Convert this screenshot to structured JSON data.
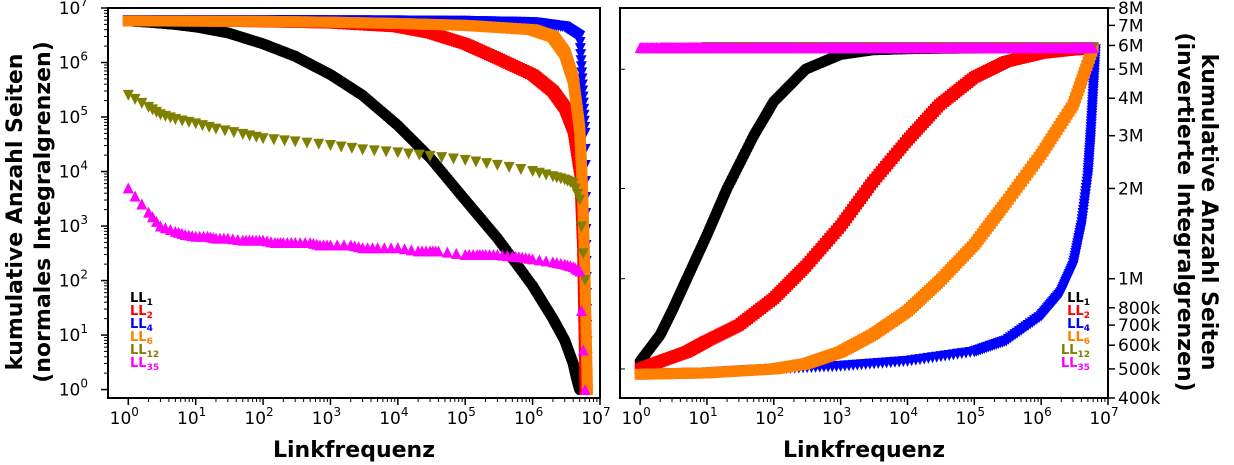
{
  "chart_data": [
    {
      "type": "scatter",
      "panel": "left",
      "xscale": "log",
      "yscale": "log",
      "xlim": [
        0.5,
        10000000
      ],
      "ylim": [
        0.7,
        10000000
      ],
      "xlabel": "Linkfrequenz",
      "ylabel_lines": [
        "kumulative Anzahl Seiten",
        "(normales Integralgrenzen)"
      ],
      "x_ticks": [
        {
          "base": "10",
          "exp": "0",
          "value": 1
        },
        {
          "base": "10",
          "exp": "1",
          "value": 10
        },
        {
          "base": "10",
          "exp": "2",
          "value": 100
        },
        {
          "base": "10",
          "exp": "3",
          "value": 1000
        },
        {
          "base": "10",
          "exp": "4",
          "value": 10000
        },
        {
          "base": "10",
          "exp": "5",
          "value": 100000
        },
        {
          "base": "10",
          "exp": "6",
          "value": 1000000
        },
        {
          "base": "10",
          "exp": "7",
          "value": 10000000
        }
      ],
      "y_ticks": [
        {
          "base": "10",
          "exp": "0",
          "value": 1
        },
        {
          "base": "10",
          "exp": "1",
          "value": 10
        },
        {
          "base": "10",
          "exp": "2",
          "value": 100
        },
        {
          "base": "10",
          "exp": "3",
          "value": 1000
        },
        {
          "base": "10",
          "exp": "4",
          "value": 10000
        },
        {
          "base": "10",
          "exp": "5",
          "value": 100000
        },
        {
          "base": "10",
          "exp": "6",
          "value": 1000000
        },
        {
          "base": "10",
          "exp": "7",
          "value": 10000000
        }
      ],
      "legend_position": "bottom-left",
      "series": [
        {
          "name": "LL",
          "sub": "1",
          "color": "#000000",
          "marker": "circle",
          "x": [
            1,
            2,
            5,
            10,
            30,
            100,
            300,
            1000,
            3000,
            10000,
            30000,
            100000,
            300000,
            1000000,
            2000000,
            3000000,
            4000000,
            4500000,
            5000000
          ],
          "y": [
            5800000,
            5500000,
            5000000,
            4500000,
            3500000,
            2200000,
            1300000,
            600000,
            250000,
            70000,
            18000,
            3000,
            600,
            80,
            20,
            8,
            3,
            1.6,
            1
          ]
        },
        {
          "name": "LL",
          "sub": "2",
          "color": "#ff0000",
          "marker": "square",
          "x": [
            1,
            10,
            100,
            1000,
            10000,
            30000,
            100000,
            300000,
            1000000,
            2000000,
            3000000,
            4000000,
            5000000,
            5500000,
            6000000
          ],
          "y": [
            5800000,
            5750000,
            5600000,
            5300000,
            4500000,
            3500000,
            2200000,
            1200000,
            600000,
            300000,
            150000,
            60000,
            10000,
            500,
            1
          ]
        },
        {
          "name": "LL",
          "sub": "4",
          "color": "#0000ff",
          "marker": "triangle-down",
          "x": [
            1,
            10,
            100,
            1000,
            10000,
            100000,
            1000000,
            3000000,
            5000000,
            6000000,
            6500000
          ],
          "y": [
            5900000,
            5900000,
            5900000,
            5850000,
            5800000,
            5700000,
            5400000,
            4500000,
            3000000,
            50000,
            1
          ]
        },
        {
          "name": "LL",
          "sub": "6",
          "color": "#ff7f00",
          "marker": "square",
          "x": [
            1,
            10,
            100,
            1000,
            10000,
            100000,
            1000000,
            2000000,
            3000000,
            4000000,
            5000000,
            5500000,
            6000000,
            6500000
          ],
          "y": [
            5800000,
            5750000,
            5700000,
            5500000,
            5200000,
            4800000,
            4000000,
            3000000,
            1500000,
            500000,
            60000,
            5000,
            100,
            1
          ]
        },
        {
          "name": "LL",
          "sub": "12",
          "color": "#808000",
          "marker": "triangle-down",
          "x": [
            1,
            2,
            3,
            5,
            10,
            20,
            50,
            100,
            300,
            1000,
            3000,
            10000,
            30000,
            100000,
            300000,
            1000000,
            2000000,
            3000000,
            4000000,
            5000000,
            6000000
          ],
          "y": [
            250000,
            150000,
            110000,
            90000,
            75000,
            60000,
            48000,
            40000,
            35000,
            30000,
            25000,
            22000,
            19000,
            16000,
            13000,
            10000,
            8000,
            7000,
            6000,
            3000,
            100
          ]
        },
        {
          "name": "LL",
          "sub": "35",
          "color": "#ff00ff",
          "marker": "triangle-up",
          "x": [
            1,
            2,
            3,
            5,
            7,
            10,
            15,
            20,
            30,
            50,
            70,
            100,
            150,
            200,
            300,
            500,
            700,
            1000,
            2000,
            3000,
            5000,
            10000,
            20000,
            30000,
            40000,
            100000,
            150000,
            200000,
            300000,
            500000,
            700000,
            1000000,
            2000000,
            3000000,
            4000000,
            5000000,
            6000000
          ],
          "y": [
            5000,
            1800,
            1000,
            800,
            700,
            650,
            650,
            600,
            600,
            550,
            550,
            550,
            500,
            500,
            500,
            500,
            450,
            450,
            450,
            400,
            400,
            400,
            350,
            350,
            350,
            300,
            300,
            300,
            300,
            280,
            270,
            250,
            220,
            200,
            180,
            150,
            1
          ]
        }
      ]
    },
    {
      "type": "scatter",
      "panel": "right",
      "xscale": "log",
      "yscale": "log",
      "xlim": [
        0.5,
        10000000
      ],
      "ylim": [
        400000,
        8000000
      ],
      "xlabel": "Linkfrequenz",
      "ylabel_lines": [
        "kumulative Anzahl Seiten",
        "(invertierte Integralgrenzen)"
      ],
      "x_ticks": [
        {
          "base": "10",
          "exp": "0",
          "value": 1
        },
        {
          "base": "10",
          "exp": "1",
          "value": 10
        },
        {
          "base": "10",
          "exp": "2",
          "value": 100
        },
        {
          "base": "10",
          "exp": "3",
          "value": 1000
        },
        {
          "base": "10",
          "exp": "4",
          "value": 10000
        },
        {
          "base": "10",
          "exp": "5",
          "value": 100000
        },
        {
          "base": "10",
          "exp": "6",
          "value": 1000000
        },
        {
          "base": "10",
          "exp": "7",
          "value": 10000000
        }
      ],
      "y_ticks": [
        {
          "label": "400k",
          "value": 400000
        },
        {
          "label": "500k",
          "value": 500000
        },
        {
          "label": "600k",
          "value": 600000
        },
        {
          "label": "700k",
          "value": 700000
        },
        {
          "label": "800k",
          "value": 800000
        },
        {
          "label": "1M",
          "value": 1000000
        },
        {
          "label": "2M",
          "value": 2000000
        },
        {
          "label": "3M",
          "value": 3000000
        },
        {
          "label": "4M",
          "value": 4000000
        },
        {
          "label": "5M",
          "value": 5000000
        },
        {
          "label": "6M",
          "value": 6000000
        },
        {
          "label": "7M",
          "value": 7000000
        },
        {
          "label": "8M",
          "value": 8000000
        }
      ],
      "legend_position": "bottom-right",
      "series": [
        {
          "name": "LL",
          "sub": "1",
          "color": "#000000",
          "marker": "circle",
          "x": [
            1,
            2,
            3,
            5,
            10,
            20,
            50,
            100,
            300,
            1000,
            3000,
            10000,
            30000,
            100000,
            1000000,
            6000000
          ],
          "y": [
            530000,
            650000,
            780000,
            1000000,
            1400000,
            2000000,
            3000000,
            3900000,
            5000000,
            5600000,
            5800000,
            5850000,
            5870000,
            5880000,
            5890000,
            5900000
          ]
        },
        {
          "name": "LL",
          "sub": "2",
          "color": "#ff0000",
          "marker": "square",
          "x": [
            1,
            2,
            5,
            10,
            30,
            100,
            300,
            1000,
            3000,
            10000,
            30000,
            100000,
            300000,
            1000000,
            3000000,
            6000000
          ],
          "y": [
            500000,
            530000,
            570000,
            620000,
            700000,
            860000,
            1100000,
            1500000,
            2100000,
            2900000,
            3800000,
            4700000,
            5300000,
            5650000,
            5800000,
            5850000
          ]
        },
        {
          "name": "LL",
          "sub": "4",
          "color": "#0000ff",
          "marker": "triangle-down",
          "x": [
            1,
            10,
            100,
            1000,
            10000,
            100000,
            300000,
            1000000,
            2000000,
            3000000,
            4000000,
            5000000,
            5500000,
            6000000,
            6500000
          ],
          "y": [
            480000,
            485000,
            500000,
            510000,
            530000,
            570000,
            620000,
            750000,
            900000,
            1100000,
            1500000,
            2200000,
            3000000,
            4200000,
            5800000
          ]
        },
        {
          "name": "LL",
          "sub": "6",
          "color": "#ff7f00",
          "marker": "square",
          "x": [
            1,
            10,
            100,
            300,
            1000,
            3000,
            10000,
            30000,
            100000,
            300000,
            1000000,
            3000000,
            6000000
          ],
          "y": [
            480000,
            485000,
            500000,
            520000,
            570000,
            650000,
            780000,
            980000,
            1300000,
            1800000,
            2600000,
            3800000,
            5900000
          ]
        },
        {
          "name": "LL",
          "sub": "12",
          "color": "#808000",
          "marker": "triangle-down",
          "x": [
            10,
            30,
            100,
            300,
            1000,
            3000,
            10000,
            30000,
            100000,
            300000,
            1000000,
            3000000,
            6000000
          ],
          "y": [
            5900000,
            5900000,
            5900000,
            5900000,
            5900000,
            5900000,
            5900000,
            5900000,
            5900000,
            5900000,
            5900000,
            5900000,
            5900000
          ]
        },
        {
          "name": "LL",
          "sub": "35",
          "color": "#ff00ff",
          "marker": "triangle-up",
          "x": [
            1,
            2,
            3,
            5,
            7,
            10,
            20,
            50,
            100,
            200,
            500,
            1000,
            2000,
            5000,
            10000,
            20000,
            50000,
            100000,
            200000,
            500000,
            1000000,
            3000000,
            6000000
          ],
          "y": [
            5900000,
            5900000,
            5900000,
            5900000,
            5900000,
            5900000,
            5900000,
            5900000,
            5900000,
            5900000,
            5900000,
            5900000,
            5900000,
            5900000,
            5900000,
            5900000,
            5900000,
            5900000,
            5900000,
            5900000,
            5900000,
            5900000,
            5900000
          ]
        }
      ]
    }
  ]
}
